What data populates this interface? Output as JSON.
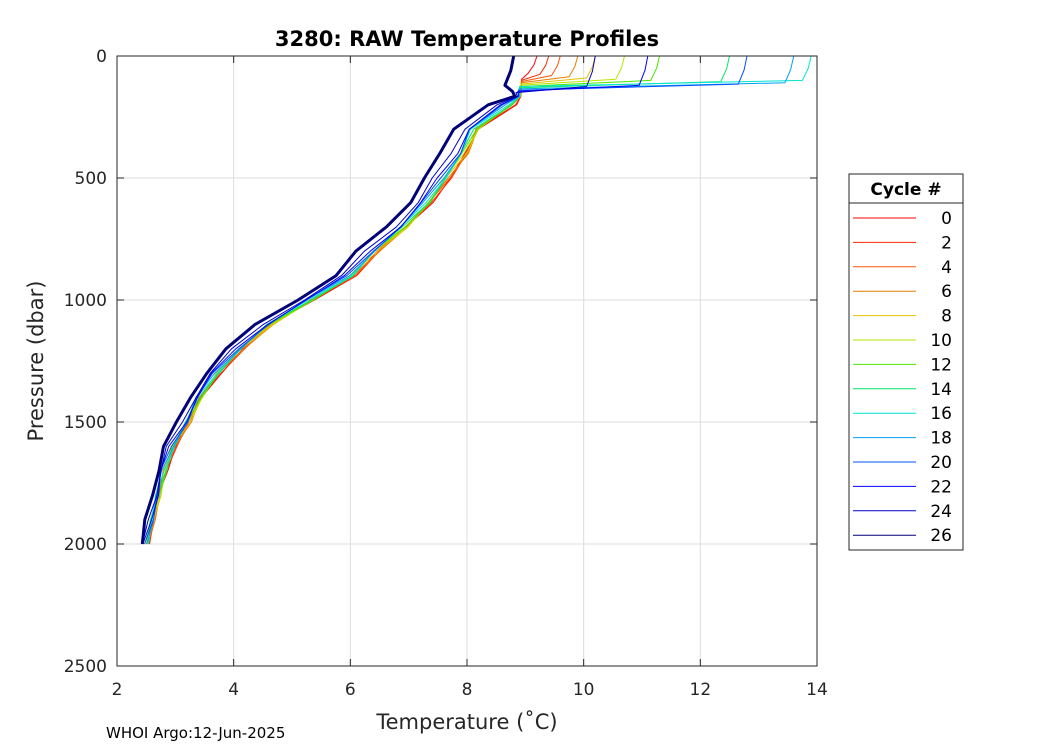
{
  "footer": "WHOI Argo:12-Jun-2025",
  "chart_data": {
    "type": "line",
    "title": "3280: RAW Temperature Profiles",
    "xlabel": "Temperature (˚C)",
    "ylabel": "Pressure (dbar)",
    "xlim": [
      2,
      14
    ],
    "ylim": [
      0,
      2500
    ],
    "y_reversed": true,
    "grid": true,
    "x_ticks": [
      2,
      4,
      6,
      8,
      10,
      12,
      14
    ],
    "y_ticks": [
      0,
      500,
      1000,
      1500,
      2000,
      2500
    ],
    "legend": {
      "title": "Cycle #",
      "placement": "outside-right"
    },
    "series": [
      {
        "name": "0",
        "color": "#ff0000",
        "surface_temp": 9.2,
        "deep_offset": 0.12,
        "layer_depth": 70
      },
      {
        "name": "2",
        "color": "#ff2a00",
        "surface_temp": 9.4,
        "deep_offset": 0.12,
        "layer_depth": 75
      },
      {
        "name": "4",
        "color": "#ff5500",
        "surface_temp": 9.6,
        "deep_offset": 0.1,
        "layer_depth": 80
      },
      {
        "name": "6",
        "color": "#e67e00",
        "surface_temp": 9.9,
        "deep_offset": 0.1,
        "layer_depth": 85
      },
      {
        "name": "8",
        "color": "#e6c200",
        "surface_temp": 10.2,
        "deep_offset": 0.08,
        "layer_depth": 90
      },
      {
        "name": "10",
        "color": "#b4e600",
        "surface_temp": 10.7,
        "deep_offset": 0.06,
        "layer_depth": 95
      },
      {
        "name": "12",
        "color": "#4ce600",
        "surface_temp": 11.3,
        "deep_offset": 0.05,
        "layer_depth": 100
      },
      {
        "name": "14",
        "color": "#00e66a",
        "surface_temp": 12.5,
        "deep_offset": 0.03,
        "layer_depth": 105
      },
      {
        "name": "16",
        "color": "#00e6d2",
        "surface_temp": 13.9,
        "deep_offset": 0.0,
        "layer_depth": 100
      },
      {
        "name": "18",
        "color": "#00a0f0",
        "surface_temp": 13.6,
        "deep_offset": -0.03,
        "layer_depth": 110
      },
      {
        "name": "20",
        "color": "#0050ff",
        "surface_temp": 12.8,
        "deep_offset": -0.06,
        "layer_depth": 115
      },
      {
        "name": "22",
        "color": "#0000ff",
        "surface_temp": 11.1,
        "deep_offset": -0.1,
        "layer_depth": 120
      },
      {
        "name": "24",
        "color": "#0000c8",
        "surface_temp": 10.2,
        "deep_offset": -0.2,
        "layer_depth": 125
      },
      {
        "name": "26",
        "color": "#000078",
        "surface_temp": 8.8,
        "deep_offset": -0.4,
        "layer_depth": 120
      }
    ],
    "base_profile": {
      "pressure": [
        200,
        300,
        400,
        500,
        600,
        700,
        800,
        900,
        1000,
        1100,
        1200,
        1300,
        1400,
        1500,
        1600,
        1700,
        1800,
        1900,
        2000
      ],
      "temperature": [
        8.7,
        8.1,
        7.9,
        7.6,
        7.3,
        6.9,
        6.4,
        6.0,
        5.3,
        4.6,
        4.1,
        3.7,
        3.4,
        3.2,
        2.95,
        2.8,
        2.7,
        2.6,
        2.5
      ]
    }
  }
}
